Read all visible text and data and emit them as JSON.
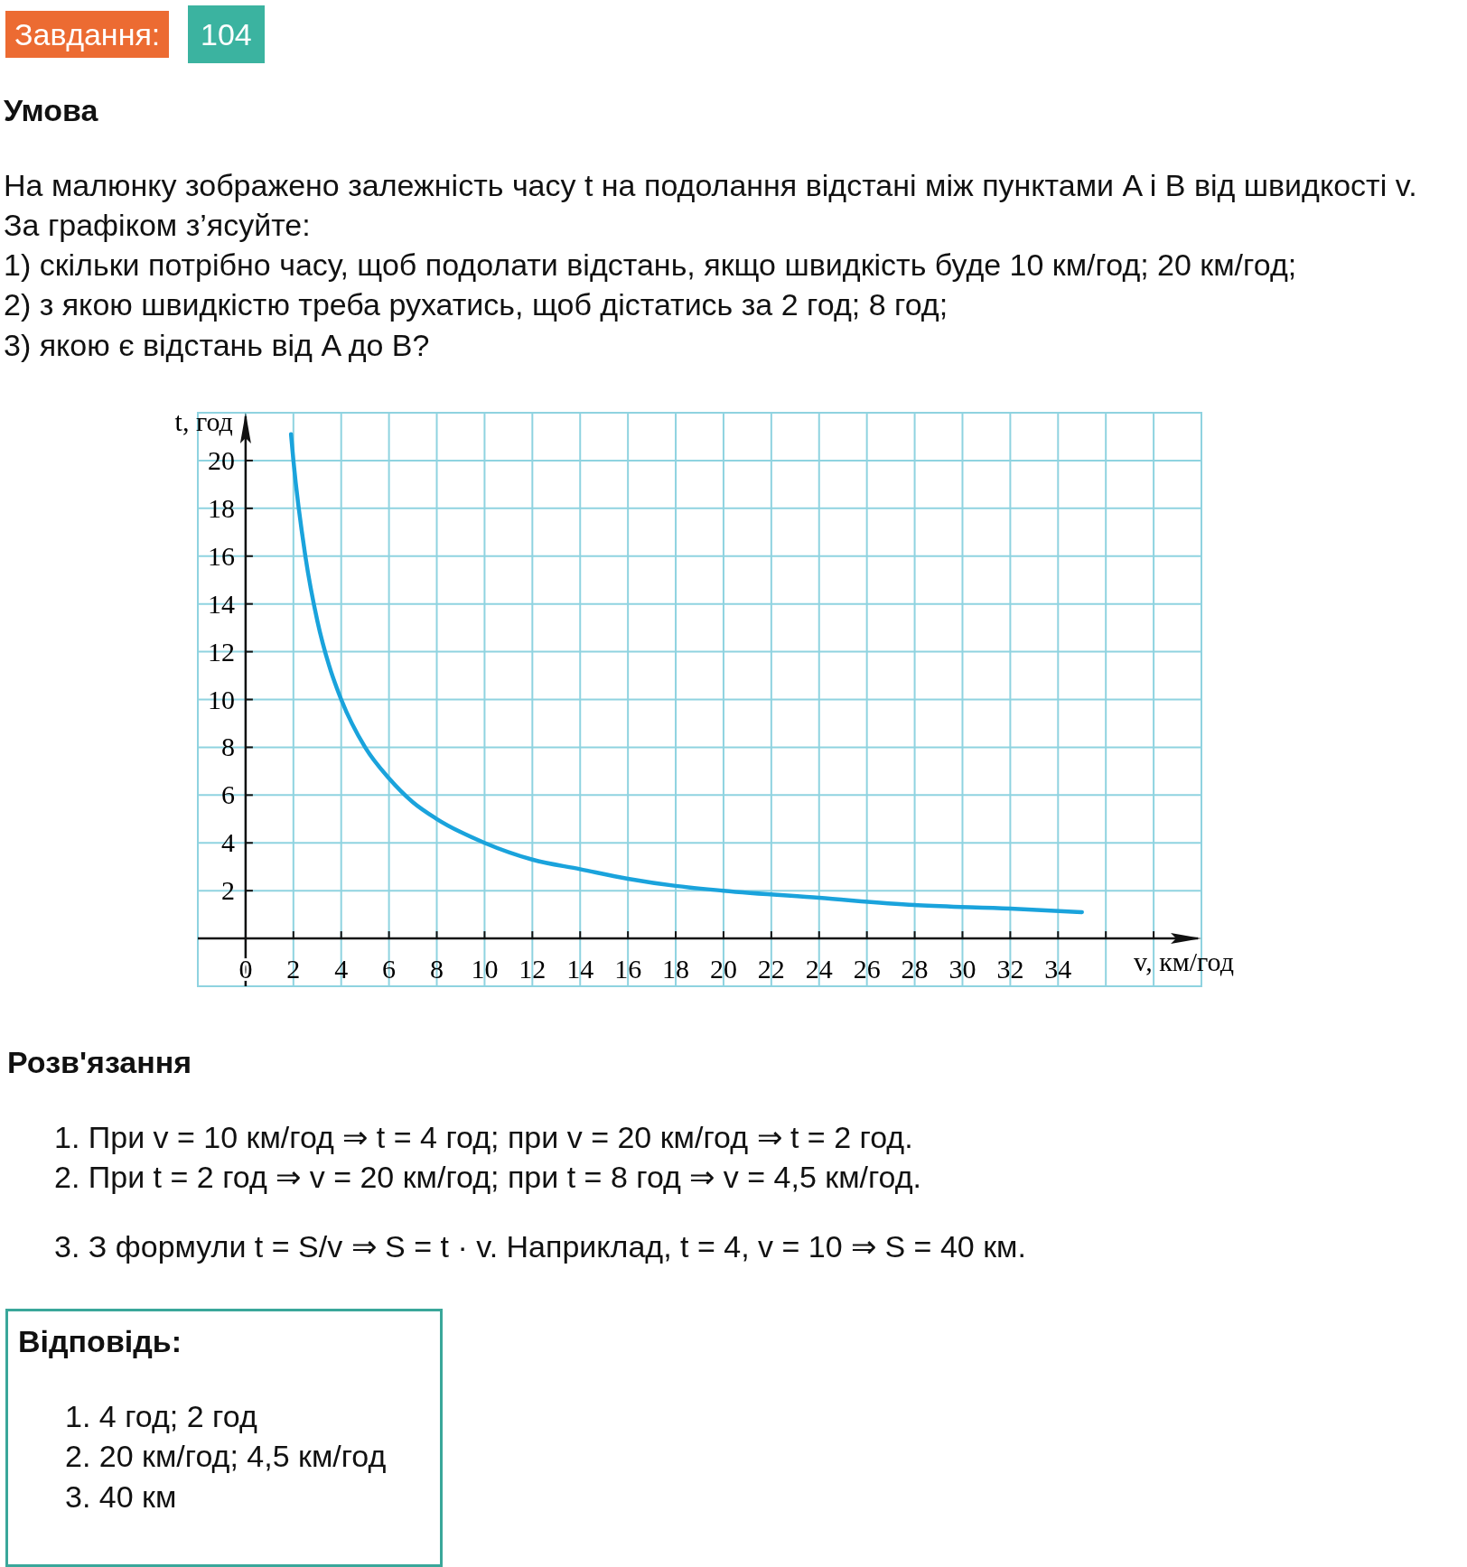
{
  "chart_data": {
    "type": "line",
    "xlabel": "v, км/год",
    "ylabel": "t, год",
    "annotations": [
      "Завдання:",
      "104",
      "Умова",
      "На малюнку зображено залежність часу t на подолання відстані між пунктами A і B від швидкості v. За графіком з’ясуйте:",
      "1) скільки потрібно часу, щоб подолати відстань, якщо швидкість буде 10 км/год; 20 км/год;",
      "2) з якою швидкістю треба рухатись, щоб дістатись за 2 год; 8 год;",
      "3) якою є відстань від A до B?",
      "Розв'язання",
      "1. При v = 10 км/год ⇒ t = 4 год; при v = 20 км/год ⇒ t = 2 год.",
      "2. При t = 2 год ⇒ v = 20 км/год; при t = 8 год ⇒ v = 4,5 км/год.",
      "3. З формули t = S/v ⇒ S = t · v. Наприклад, t = 4, v = 10 ⇒ S = 40 км.",
      "Відповідь:",
      "1. 4 год; 2 год",
      "2. 20 км/год; 4,5 км/год",
      "3. 40 км"
    ],
    "x": [
      1.9,
      2,
      2.5,
      3,
      3.5,
      4,
      5,
      6,
      7,
      8,
      10,
      12,
      14,
      16,
      18,
      20,
      24,
      28,
      32,
      35
    ],
    "series": [
      {
        "color": "#1aa3dc",
        "values": [
          21.1,
          20,
          16,
          13.3,
          11.4,
          10,
          8,
          6.7,
          5.7,
          5,
          4,
          3.3,
          2.9,
          2.5,
          2.2,
          2,
          1.7,
          1.4,
          1.25,
          1.1
        ]
      }
    ],
    "xlim": [
      -2,
      40
    ],
    "ylim": [
      -2,
      22
    ],
    "xticks": [
      {
        "value": 0,
        "label": "0"
      },
      2,
      4,
      6,
      8,
      10,
      12,
      14,
      16,
      18,
      20,
      22,
      24,
      26,
      28,
      30,
      32,
      34,
      {
        "value": 36,
        "label": null
      },
      {
        "value": 38,
        "label": null
      }
    ],
    "yticks": [
      2,
      4,
      6,
      8,
      10,
      12,
      14,
      16,
      18,
      20
    ],
    "grid": true,
    "line_style": "solid"
  }
}
